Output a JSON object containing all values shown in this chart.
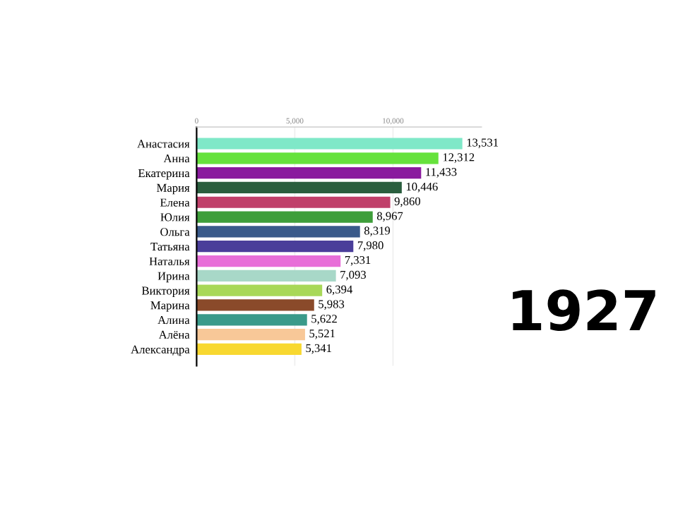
{
  "chart_data": {
    "type": "bar",
    "orientation": "horizontal",
    "categories": [
      "Анастасия",
      "Анна",
      "Екатерина",
      "Мария",
      "Елена",
      "Юлия",
      "Ольга",
      "Татьяна",
      "Наталья",
      "Ирина",
      "Виктория",
      "Марина",
      "Алина",
      "Алёна",
      "Александра"
    ],
    "values": [
      13531,
      12312,
      11433,
      10446,
      9860,
      8967,
      8319,
      7980,
      7331,
      7093,
      6394,
      5983,
      5622,
      5521,
      5341
    ],
    "value_labels": [
      "13,531",
      "12,312",
      "11,433",
      "10,446",
      "9,860",
      "8,967",
      "8,319",
      "7,980",
      "7,331",
      "7,093",
      "6,394",
      "5,983",
      "5,622",
      "5,521",
      "5,341"
    ],
    "colors": [
      "#7fe8c8",
      "#66e23c",
      "#8a1a9e",
      "#2a5e3e",
      "#c0406a",
      "#3e9e3a",
      "#3a5a8a",
      "#4a3e9a",
      "#e86ed8",
      "#a8d8c8",
      "#a8d858",
      "#8a4a2a",
      "#3a9a8a",
      "#f8c898",
      "#f8d830"
    ],
    "xlim": [
      0,
      14500
    ],
    "xticks": [
      0,
      {
        "value": 5000,
        "label": "5,000"
      },
      {
        "value": 10000,
        "label": "10,000"
      }
    ],
    "grid": "x",
    "annotations": [
      "1927"
    ]
  }
}
